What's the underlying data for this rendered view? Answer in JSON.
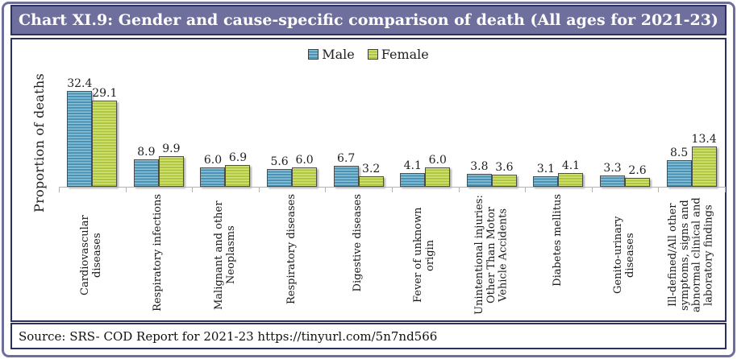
{
  "window": {
    "title": "Chart XI.9: Gender and cause-specific comparison of death (All ages for 2021-23)",
    "source_line": "Source: SRS- COD Report for 2021-23 https://tinyurl.com/5n7nd566"
  },
  "chart_data": {
    "type": "bar",
    "title": "Chart XI.9: Gender and cause-specific comparison of death (All ages for 2021-23)",
    "xlabel": "",
    "ylabel": "Proportion of deaths",
    "categories": [
      "Cardiovascular diseases",
      "Respiratory infections",
      "Malignant and other Neoplasms",
      "Respiratory diseases",
      "Digestive diseases",
      "Fever of unknown origin",
      "Unintentional injuries: Other Than Motor Vehicle Accidents",
      "Diabetes mellitus",
      "Genito-urinary diseases",
      "Ill-defined/All other symptoms, signs and abnormal clinical and laboratory findings"
    ],
    "series": [
      {
        "name": "Male",
        "color": "#4a90b2",
        "values": [
          32.4,
          8.9,
          6.0,
          5.6,
          6.7,
          4.1,
          3.8,
          3.1,
          3.3,
          8.5
        ]
      },
      {
        "name": "Female",
        "color": "#aec63c",
        "values": [
          29.1,
          9.9,
          6.9,
          6.0,
          3.2,
          6.0,
          3.6,
          4.1,
          2.6,
          13.4
        ]
      }
    ],
    "value_labels_shown": true,
    "value_label_format": "0.0",
    "legend_position": "top-center",
    "grid": false,
    "ylim": [
      0,
      35
    ]
  },
  "colors": {
    "title_bar_bg": "#6f6f9e",
    "outer_border": "#6e6e9d",
    "panel_border": "#2b3060",
    "male_bar": "#4a90b2",
    "male_bar_light": "#8cc3d9",
    "female_bar": "#aec63c",
    "female_bar_light": "#d5e17b",
    "axis_line": "#b3b3b3"
  }
}
